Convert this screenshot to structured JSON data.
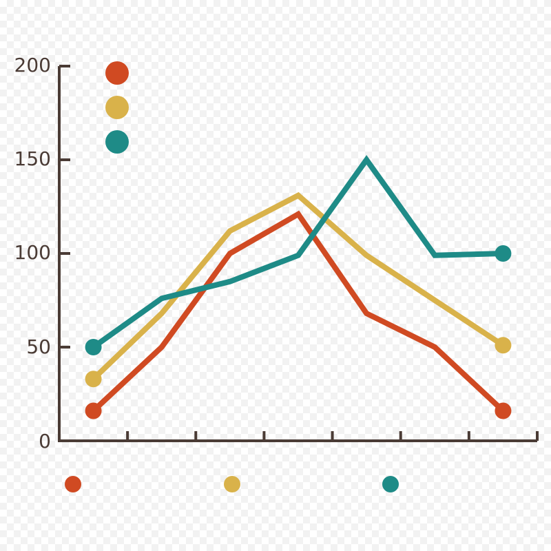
{
  "chart_data": {
    "type": "line",
    "x": [
      1,
      2,
      3,
      4,
      5,
      6,
      7
    ],
    "series": [
      {
        "color": "#d04a22",
        "values": [
          16,
          50,
          100,
          121,
          68,
          50,
          16
        ]
      },
      {
        "color": "#d9b24a",
        "values": [
          33,
          68,
          112,
          131,
          99,
          75,
          51
        ]
      },
      {
        "color": "#1e8b87",
        "values": [
          50,
          76,
          85,
          99,
          150,
          99,
          100
        ]
      }
    ],
    "ylim": [
      0,
      200
    ],
    "yticks": [
      "0",
      "50",
      "100",
      "150",
      "200"
    ],
    "xlim": [
      0.5,
      7.5
    ],
    "grid": false,
    "legend": "top-left",
    "axis_color": "#4a3b35"
  }
}
